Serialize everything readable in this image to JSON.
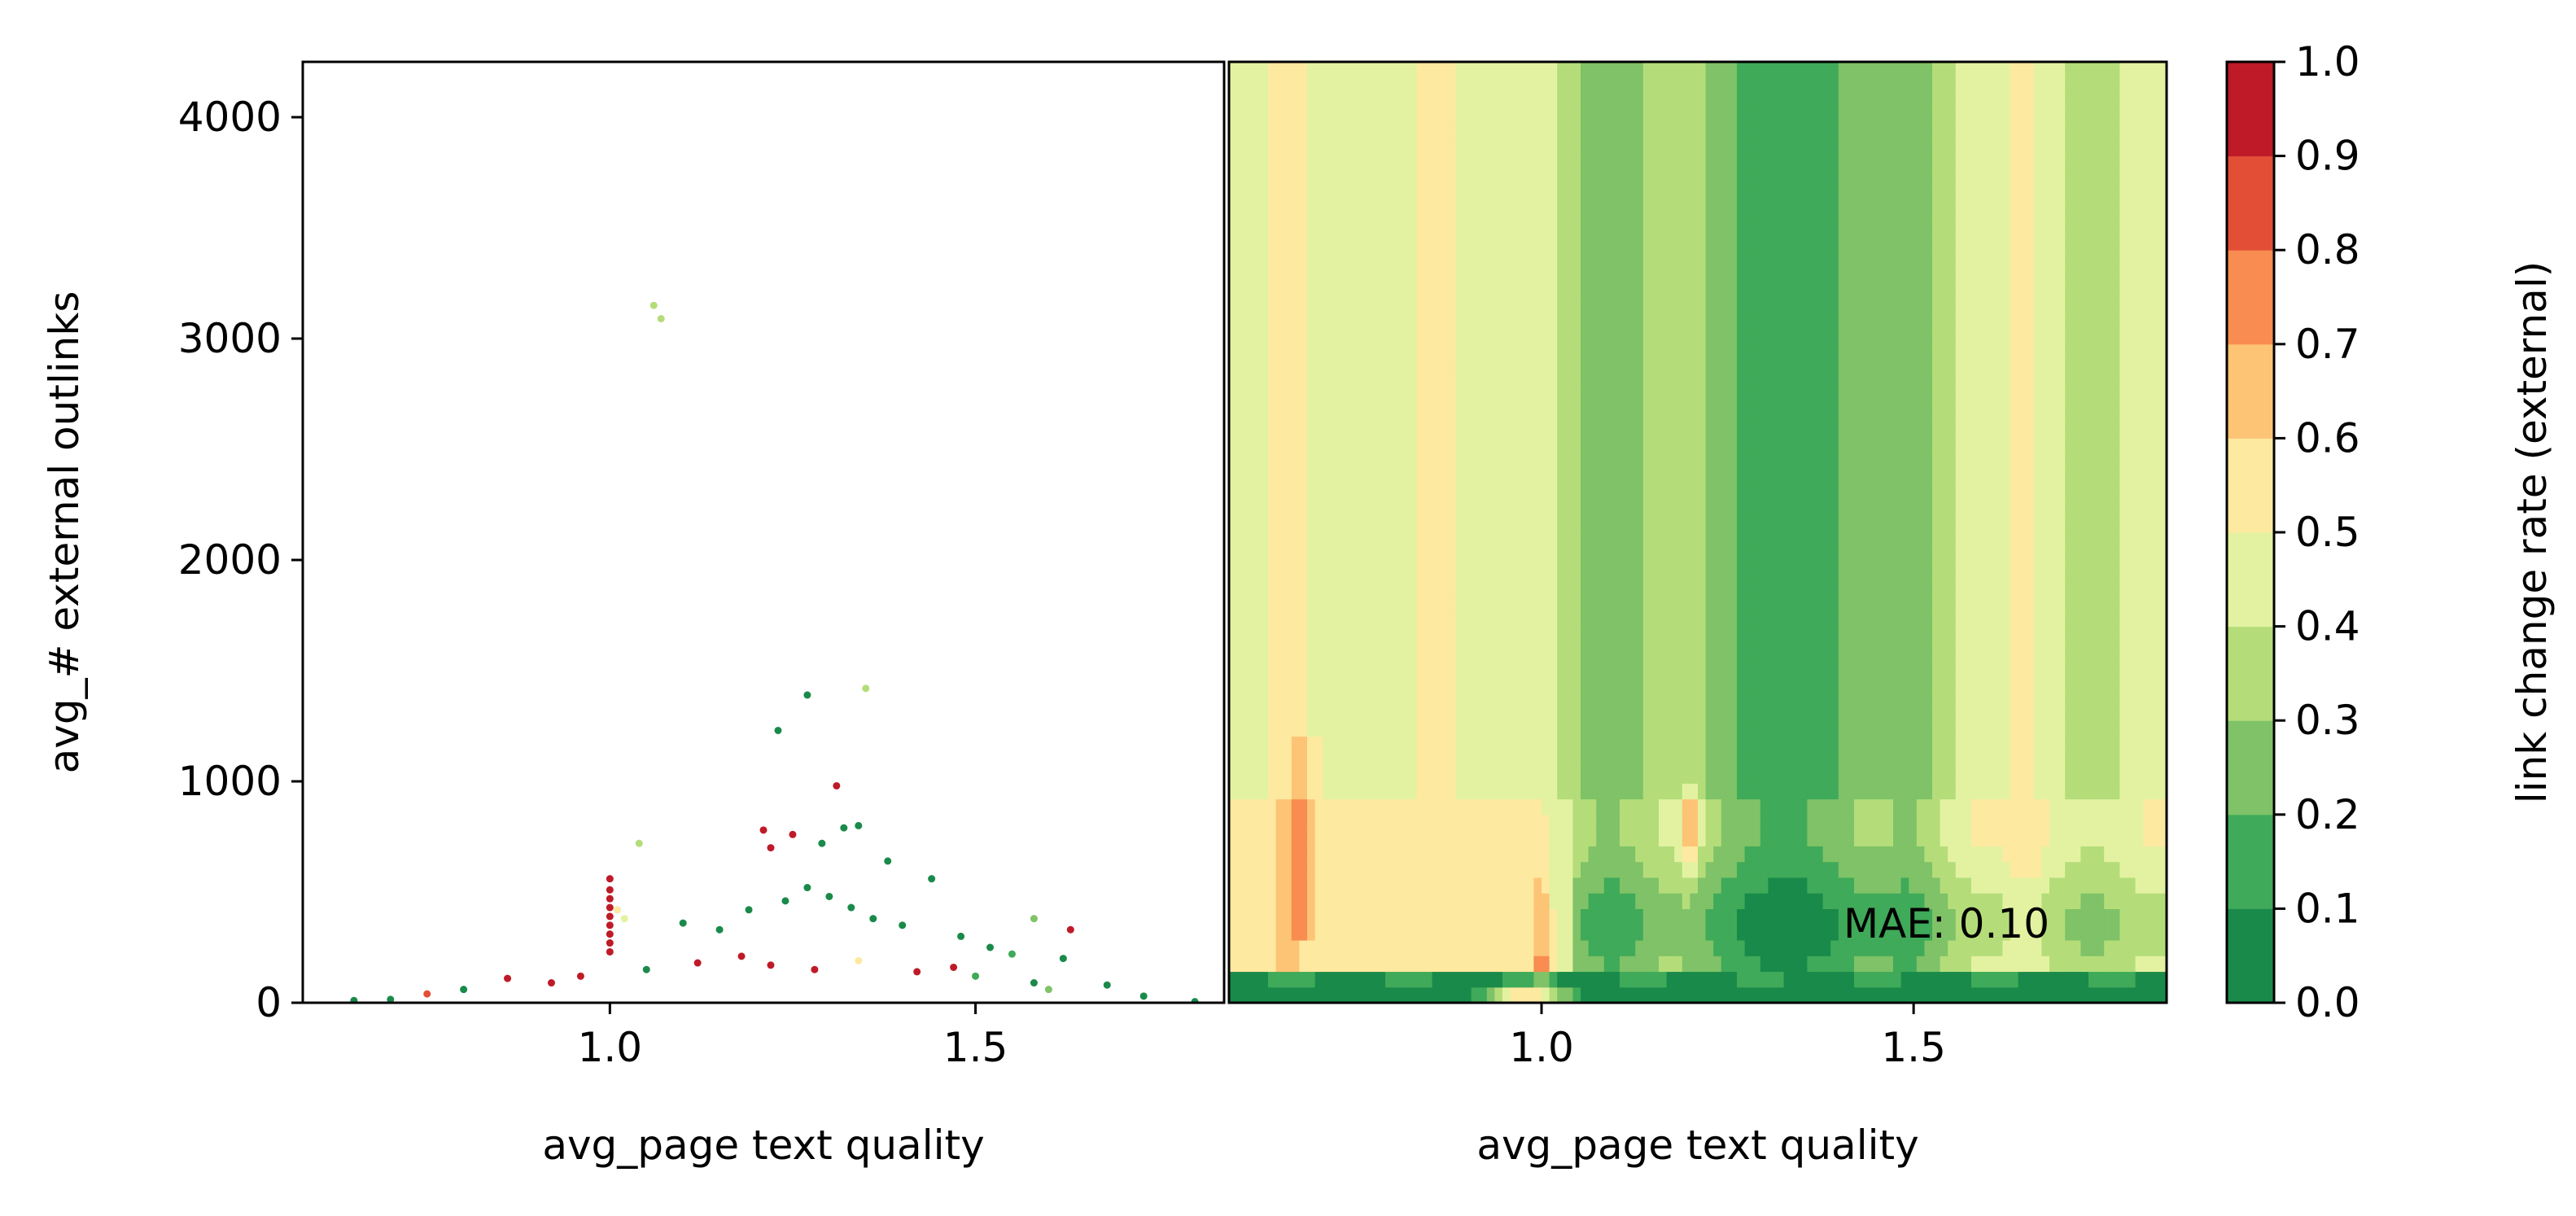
{
  "chart_data": [
    {
      "type": "scatter",
      "xlabel": "avg_page text quality",
      "ylabel": "avg_# external outlinks",
      "xlim": [
        0.58,
        1.84
      ],
      "ylim": [
        0,
        4250
      ],
      "xticks": [
        1.0,
        1.5
      ],
      "xtick_labels": [
        "1.0",
        "1.5"
      ],
      "yticks": [
        0,
        1000,
        2000,
        3000,
        4000
      ],
      "ytick_labels": [
        "0",
        "1000",
        "2000",
        "3000",
        "4000"
      ],
      "points": [
        {
          "x": 1.06,
          "y": 3150,
          "c": 0.35
        },
        {
          "x": 1.07,
          "y": 3090,
          "c": 0.35
        },
        {
          "x": 1.35,
          "y": 1420,
          "c": 0.35
        },
        {
          "x": 1.27,
          "y": 1390,
          "c": 0.05
        },
        {
          "x": 1.23,
          "y": 1230,
          "c": 0.05
        },
        {
          "x": 1.31,
          "y": 980,
          "c": 0.95
        },
        {
          "x": 1.04,
          "y": 720,
          "c": 0.35
        },
        {
          "x": 1.21,
          "y": 780,
          "c": 0.95
        },
        {
          "x": 1.22,
          "y": 700,
          "c": 0.95
        },
        {
          "x": 1.25,
          "y": 760,
          "c": 0.95
        },
        {
          "x": 1.32,
          "y": 790,
          "c": 0.05
        },
        {
          "x": 1.34,
          "y": 800,
          "c": 0.05
        },
        {
          "x": 1.38,
          "y": 640,
          "c": 0.05
        },
        {
          "x": 1.29,
          "y": 720,
          "c": 0.05
        },
        {
          "x": 1.44,
          "y": 560,
          "c": 0.05
        },
        {
          "x": 1.58,
          "y": 380,
          "c": 0.25
        },
        {
          "x": 1.63,
          "y": 330,
          "c": 0.95
        },
        {
          "x": 1.0,
          "y": 560,
          "c": 0.95
        },
        {
          "x": 1.0,
          "y": 510,
          "c": 0.95
        },
        {
          "x": 1.0,
          "y": 470,
          "c": 0.95
        },
        {
          "x": 1.0,
          "y": 430,
          "c": 0.95
        },
        {
          "x": 1.0,
          "y": 390,
          "c": 0.95
        },
        {
          "x": 1.0,
          "y": 350,
          "c": 0.95
        },
        {
          "x": 1.0,
          "y": 310,
          "c": 0.95
        },
        {
          "x": 1.0,
          "y": 270,
          "c": 0.95
        },
        {
          "x": 1.0,
          "y": 230,
          "c": 0.95
        },
        {
          "x": 1.01,
          "y": 420,
          "c": 0.55
        },
        {
          "x": 1.02,
          "y": 380,
          "c": 0.45
        },
        {
          "x": 1.1,
          "y": 360,
          "c": 0.05
        },
        {
          "x": 1.15,
          "y": 330,
          "c": 0.05
        },
        {
          "x": 1.19,
          "y": 420,
          "c": 0.05
        },
        {
          "x": 1.24,
          "y": 460,
          "c": 0.05
        },
        {
          "x": 1.27,
          "y": 520,
          "c": 0.05
        },
        {
          "x": 1.3,
          "y": 480,
          "c": 0.05
        },
        {
          "x": 1.33,
          "y": 430,
          "c": 0.05
        },
        {
          "x": 1.36,
          "y": 380,
          "c": 0.05
        },
        {
          "x": 1.4,
          "y": 350,
          "c": 0.05
        },
        {
          "x": 1.48,
          "y": 300,
          "c": 0.05
        },
        {
          "x": 1.52,
          "y": 250,
          "c": 0.05
        },
        {
          "x": 1.55,
          "y": 220,
          "c": 0.15
        },
        {
          "x": 1.62,
          "y": 200,
          "c": 0.05
        },
        {
          "x": 1.68,
          "y": 80,
          "c": 0.05
        },
        {
          "x": 1.73,
          "y": 30,
          "c": 0.05
        },
        {
          "x": 0.75,
          "y": 40,
          "c": 0.85
        },
        {
          "x": 0.8,
          "y": 60,
          "c": 0.05
        },
        {
          "x": 0.86,
          "y": 110,
          "c": 0.95
        },
        {
          "x": 0.92,
          "y": 90,
          "c": 0.95
        },
        {
          "x": 0.96,
          "y": 120,
          "c": 0.95
        },
        {
          "x": 1.05,
          "y": 150,
          "c": 0.05
        },
        {
          "x": 1.12,
          "y": 180,
          "c": 0.95
        },
        {
          "x": 1.18,
          "y": 210,
          "c": 0.95
        },
        {
          "x": 1.22,
          "y": 170,
          "c": 0.95
        },
        {
          "x": 1.28,
          "y": 150,
          "c": 0.95
        },
        {
          "x": 1.34,
          "y": 190,
          "c": 0.55
        },
        {
          "x": 1.42,
          "y": 140,
          "c": 0.95
        },
        {
          "x": 1.47,
          "y": 160,
          "c": 0.95
        },
        {
          "x": 1.5,
          "y": 120,
          "c": 0.15
        },
        {
          "x": 1.58,
          "y": 90,
          "c": 0.05
        },
        {
          "x": 1.6,
          "y": 60,
          "c": 0.25
        },
        {
          "x": 0.65,
          "y": 10,
          "c": 0.05
        },
        {
          "x": 0.7,
          "y": 15,
          "c": 0.05
        },
        {
          "x": 1.8,
          "y": 5,
          "c": 0.05
        }
      ]
    },
    {
      "type": "heatmap",
      "xlabel": "avg_page text quality",
      "xlim": [
        0.58,
        1.84
      ],
      "ylim": [
        0,
        4250
      ],
      "xticks": [
        1.0,
        1.5
      ],
      "xtick_labels": [
        "1.0",
        "1.5"
      ],
      "annotation": "MAE: 0.10"
    },
    {
      "type": "colorbar",
      "label": "link change rate (external)",
      "ticks": [
        "0.0",
        "0.1",
        "0.2",
        "0.3",
        "0.4",
        "0.5",
        "0.6",
        "0.7",
        "0.8",
        "0.9",
        "1.0"
      ],
      "levels": [
        {
          "min": 0.0,
          "max": 0.1,
          "color": "#1a8a4a"
        },
        {
          "min": 0.1,
          "max": 0.2,
          "color": "#3faa59"
        },
        {
          "min": 0.2,
          "max": 0.3,
          "color": "#7fc267"
        },
        {
          "min": 0.3,
          "max": 0.4,
          "color": "#b4dd7a"
        },
        {
          "min": 0.4,
          "max": 0.5,
          "color": "#e3f2a1"
        },
        {
          "min": 0.5,
          "max": 0.6,
          "color": "#fde9a0"
        },
        {
          "min": 0.6,
          "max": 0.7,
          "color": "#fdc475"
        },
        {
          "min": 0.7,
          "max": 0.8,
          "color": "#f88c51"
        },
        {
          "min": 0.8,
          "max": 0.9,
          "color": "#e24f36"
        },
        {
          "min": 0.9,
          "max": 1.0,
          "color": "#be1a28"
        }
      ]
    }
  ]
}
